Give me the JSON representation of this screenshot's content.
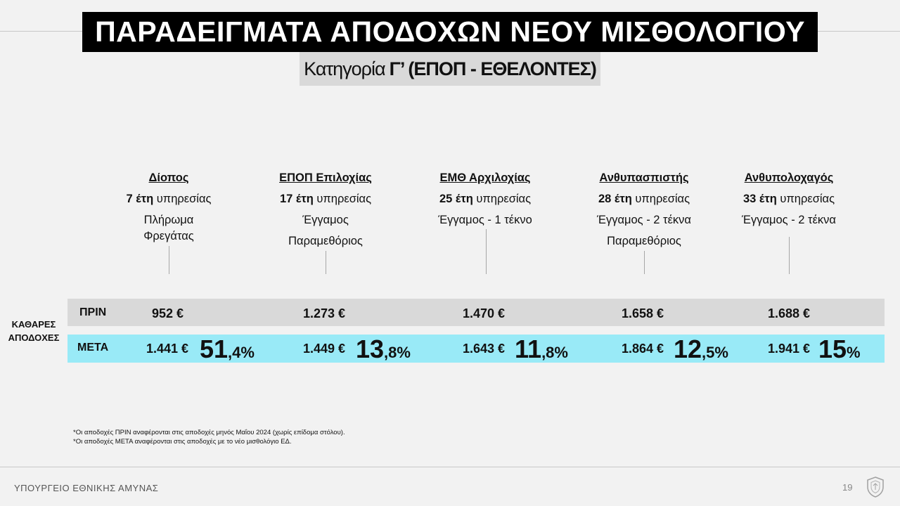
{
  "title": "ΠΑΡΑΔΕΙΓΜΑΤΑ ΑΠΟΔΟΧΩΝ ΝΕΟΥ ΜΙΣΘΟΛΟΓΙΟΥ",
  "subtitle": {
    "prefix": "Κατηγορία",
    "bold": "Γ’ (ΕΠΟΠ - ΕΘΕΛΟΝΤΕΣ)"
  },
  "columns": [
    {
      "rank": "Δίοπος",
      "years_num": "7 έτη",
      "years_text": "υπηρεσίας",
      "details": [
        "Πλήρωμα",
        "Φρεγάτας"
      ],
      "before": "952 €",
      "after": "1.441 €",
      "pct_big": "51",
      "pct_small": ",4%"
    },
    {
      "rank": "ΕΠΟΠ Επιλοχίας",
      "years_num": "17 έτη",
      "years_text": "υπηρεσίας",
      "details": [
        "Έγγαμος",
        "Παραμεθόριος"
      ],
      "before": "1.273 €",
      "after": "1.449 €",
      "pct_big": "13",
      "pct_small": ",8%"
    },
    {
      "rank": "ΕΜΘ Αρχιλοχίας",
      "years_num": "25 έτη",
      "years_text": "υπηρεσίας",
      "details": [
        "Έγγαμος - 1 τέκνο"
      ],
      "before": "1.470 €",
      "after": "1.643 €",
      "pct_big": "11",
      "pct_small": ",8%"
    },
    {
      "rank": "Ανθυπασπιστής",
      "years_num": "28 έτη",
      "years_text": "υπηρεσίας",
      "details": [
        "Έγγαμος - 2 τέκνα",
        "Παραμεθόριος"
      ],
      "before": "1.658 €",
      "after": "1.864 €",
      "pct_big": "12",
      "pct_small": ",5%"
    },
    {
      "rank": "Ανθυπολοχαγός",
      "years_num": "33 έτη",
      "years_text": "υπηρεσίας",
      "details": [
        "Έγγαμος - 2 τέκνα"
      ],
      "before": "1.688 €",
      "after": "1.941 €",
      "pct_big": "15",
      "pct_small": "%"
    }
  ],
  "side_label": [
    "ΚΑΘΑΡΕΣ",
    "ΑΠΟΔΟΧΕΣ"
  ],
  "row_labels": {
    "before": "ΠΡΙΝ",
    "after": "ΜΕΤΑ"
  },
  "notes": [
    "*Οι αποδοχές ΠΡΙΝ αναφέρονται στις αποδοχές μηνός Μαΐου 2024 (χωρίς επίδομα στόλου).",
    "*Οι αποδοχές ΜΕΤΑ αναφέρονται στις αποδοχές με το νέο μισθολόγιο ΕΔ."
  ],
  "footer": {
    "ministry": "ΥΠΟΥΡΓΕΙΟ ΕΘΝΙΚΗΣ ΑΜΥΝΑΣ",
    "page_number": "19"
  },
  "colors": {
    "title_bg": "#000000",
    "subtitle_bg": "#d9d9d9",
    "before_row": "#d9d9d9",
    "after_row": "#99eaf7"
  }
}
